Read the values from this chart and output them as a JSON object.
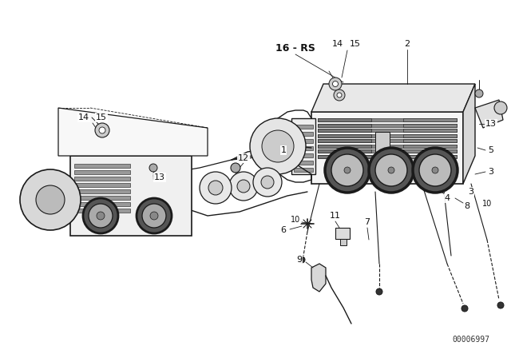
{
  "background_color": "#ffffff",
  "line_color": "#1a1a1a",
  "part_number": "00006997",
  "figsize": [
    6.4,
    4.48
  ],
  "dpi": 100
}
